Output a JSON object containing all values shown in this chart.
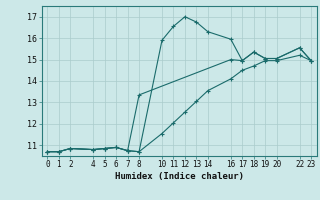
{
  "xlabel": "Humidex (Indice chaleur)",
  "xlim": [
    -0.5,
    23.5
  ],
  "ylim": [
    10.5,
    17.5
  ],
  "yticks": [
    11,
    12,
    13,
    14,
    15,
    16,
    17
  ],
  "xticks": [
    0,
    1,
    2,
    4,
    5,
    6,
    7,
    8,
    10,
    11,
    12,
    13,
    14,
    16,
    17,
    18,
    19,
    20,
    22,
    23
  ],
  "bg_color": "#cce8e8",
  "grid_color": "#aacccc",
  "line_color": "#1a6b6b",
  "line1_x": [
    0,
    1,
    2,
    4,
    5,
    6,
    7,
    8,
    10,
    11,
    12,
    13,
    14,
    16,
    17,
    18,
    19,
    20,
    22,
    23
  ],
  "line1_y": [
    10.7,
    10.7,
    10.85,
    10.8,
    10.85,
    10.9,
    10.75,
    10.7,
    15.9,
    16.55,
    17.0,
    16.75,
    16.3,
    15.95,
    14.95,
    15.35,
    15.05,
    15.05,
    15.55,
    14.95
  ],
  "line2_x": [
    0,
    1,
    2,
    4,
    5,
    6,
    7,
    8,
    16,
    17,
    18,
    19,
    20,
    22,
    23
  ],
  "line2_y": [
    10.7,
    10.7,
    10.85,
    10.8,
    10.85,
    10.9,
    10.75,
    13.35,
    15.0,
    14.95,
    15.35,
    15.05,
    15.05,
    15.55,
    14.95
  ],
  "line3_x": [
    0,
    1,
    2,
    4,
    5,
    6,
    7,
    8,
    10,
    11,
    12,
    13,
    14,
    16,
    17,
    18,
    19,
    20,
    22,
    23
  ],
  "line3_y": [
    10.7,
    10.7,
    10.85,
    10.8,
    10.85,
    10.9,
    10.75,
    10.7,
    11.55,
    12.05,
    12.55,
    13.05,
    13.55,
    14.1,
    14.5,
    14.7,
    14.95,
    14.95,
    15.2,
    14.95
  ]
}
